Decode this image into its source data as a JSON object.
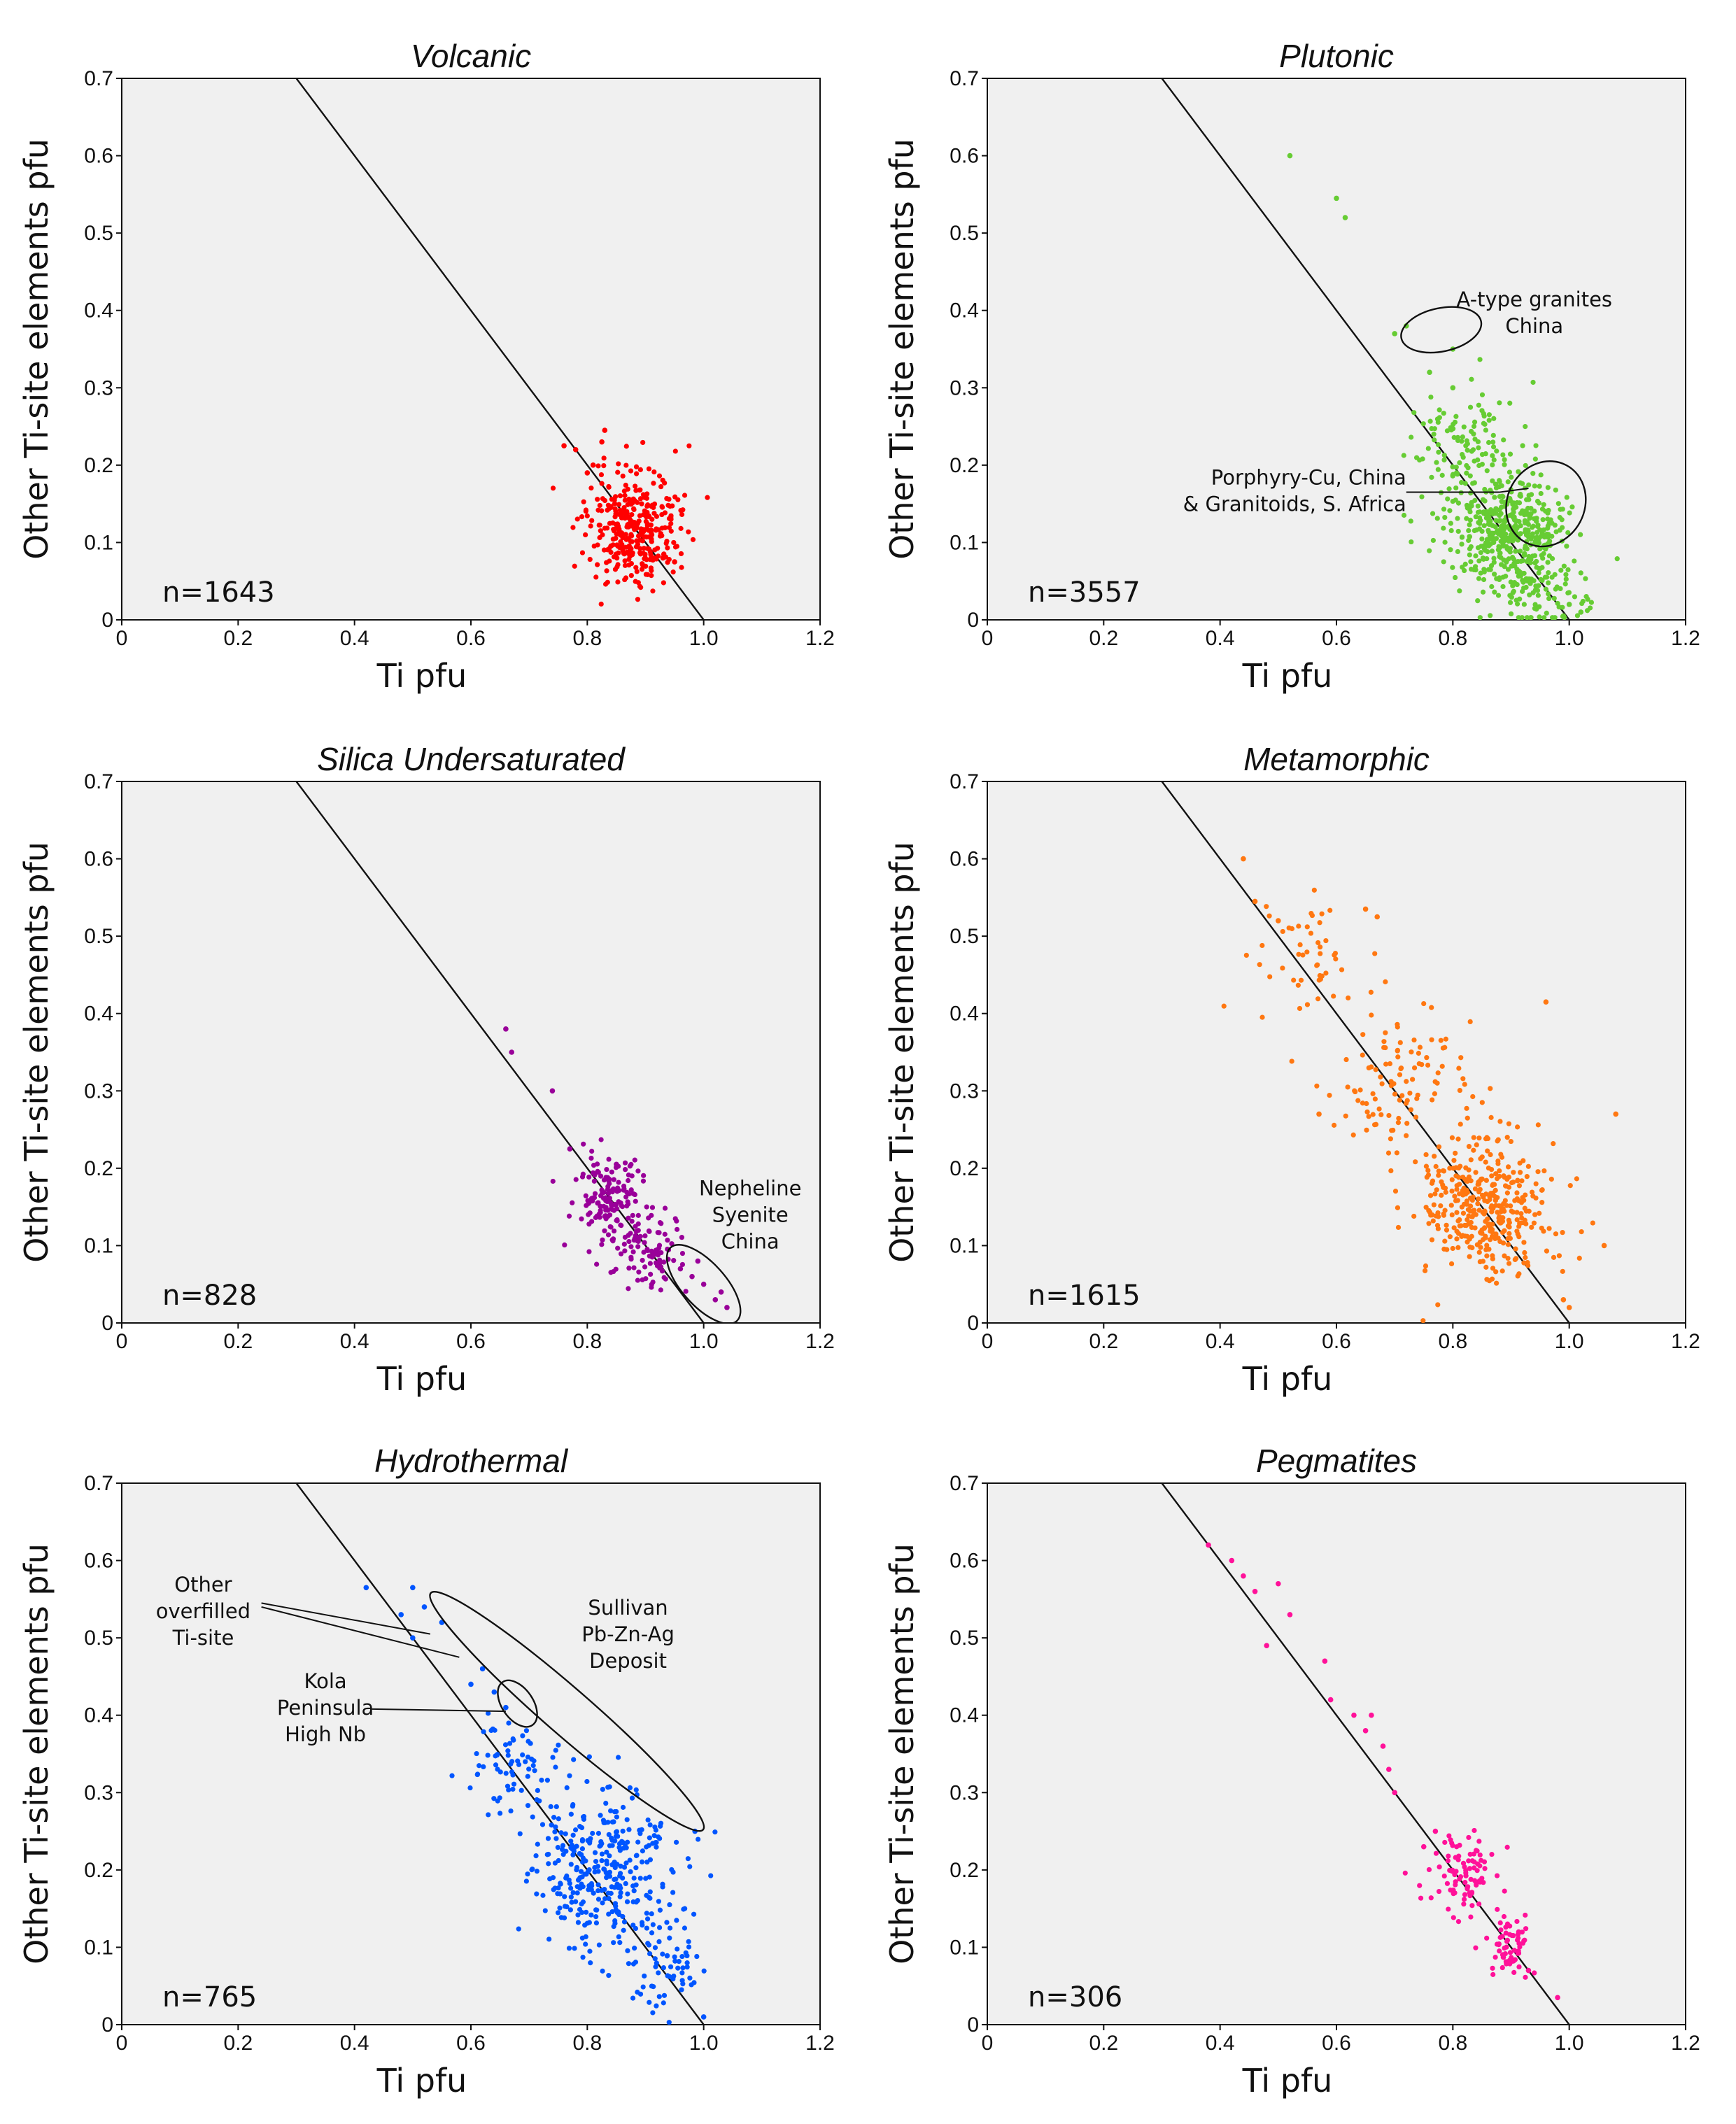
{
  "chart_data": [
    {
      "type": "scatter",
      "title": "Volcanic",
      "xlabel": "Ti  pfu",
      "ylabel": "Other Ti-site elements  pfu",
      "xlim": [
        0,
        1.2
      ],
      "ylim": [
        0,
        0.7
      ],
      "xticks": [
        "0",
        "0.2",
        "0.4",
        "0.6",
        "0.8",
        "1.0",
        "1.2"
      ],
      "yticks": [
        "0",
        "0.1",
        "0.2",
        "0.3",
        "0.4",
        "0.5",
        "0.6",
        "0.7"
      ],
      "n_label": "n=1643",
      "color": "#ff0000",
      "reference_line": [
        [
          0.3,
          0.7
        ],
        [
          1.0,
          0.0
        ]
      ],
      "series": [
        {
          "clusters": [
            {
              "center": [
                0.88,
                0.12
              ],
              "spread": [
                0.04,
                0.035
              ],
              "count": 340,
              "seed": 11
            }
          ],
          "points": [
            [
              0.76,
              0.225
            ],
            [
              0.78,
              0.22
            ],
            [
              0.81,
              0.2
            ],
            [
              0.825,
              0.23
            ],
            [
              0.83,
              0.245
            ],
            [
              0.8,
              0.19
            ],
            [
              0.93,
              0.08
            ],
            [
              0.95,
              0.075
            ]
          ]
        }
      ],
      "annotations": [],
      "outlines": []
    },
    {
      "type": "scatter",
      "title": "Plutonic",
      "xlabel": "Ti  pfu",
      "ylabel": "Other Ti-site elements  pfu",
      "xlim": [
        0,
        1.2
      ],
      "ylim": [
        0,
        0.7
      ],
      "xticks": [
        "0",
        "0.2",
        "0.4",
        "0.6",
        "0.8",
        "1.0",
        "1.2"
      ],
      "yticks": [
        "0",
        "0.1",
        "0.2",
        "0.3",
        "0.4",
        "0.5",
        "0.6",
        "0.7"
      ],
      "n_label": "n=3557",
      "color": "#66cc33",
      "reference_line": [
        [
          0.3,
          0.7
        ],
        [
          1.0,
          0.0
        ]
      ],
      "series": [
        {
          "clusters": [
            {
              "center": [
                0.9,
                0.11
              ],
              "spread": [
                0.05,
                0.035
              ],
              "count": 420,
              "seed": 21
            },
            {
              "center": [
                0.82,
                0.21
              ],
              "spread": [
                0.05,
                0.045
              ],
              "count": 140,
              "seed": 22
            },
            {
              "center": [
                0.95,
                0.04
              ],
              "spread": [
                0.04,
                0.03
              ],
              "count": 90,
              "seed": 23
            }
          ],
          "points": [
            [
              0.52,
              0.6
            ],
            [
              0.6,
              0.545
            ],
            [
              0.615,
              0.52
            ],
            [
              0.7,
              0.37
            ],
            [
              0.72,
              0.38
            ],
            [
              0.8,
              0.35
            ],
            [
              0.76,
              0.32
            ],
            [
              0.8,
              0.3
            ],
            [
              1.02,
              0.01
            ],
            [
              1.0,
              0.02
            ],
            [
              0.99,
              0.005
            ]
          ]
        }
      ],
      "annotations": [
        {
          "lines": [
            "A-type granites",
            "China"
          ],
          "x": 0.94,
          "y": 0.405,
          "anchor": "middle"
        },
        {
          "lines": [
            "Porphyry-Cu, China",
            "& Granitoids, S. Africa"
          ],
          "x": 0.72,
          "y": 0.175,
          "anchor": "end"
        }
      ],
      "outlines": [
        {
          "center": [
            0.78,
            0.375
          ],
          "rx": 0.07,
          "ry": 0.028,
          "angle": -12
        },
        {
          "center": [
            0.96,
            0.15
          ],
          "rx": 0.075,
          "ry": 0.05,
          "angle": -62
        }
      ]
    },
    {
      "type": "scatter",
      "title": "Silica Undersaturated",
      "xlabel": "Ti  pfu",
      "ylabel": "Other Ti-site elements  pfu",
      "xlim": [
        0,
        1.2
      ],
      "ylim": [
        0,
        0.7
      ],
      "xticks": [
        "0",
        "0.2",
        "0.4",
        "0.6",
        "0.8",
        "1.0",
        "1.2"
      ],
      "yticks": [
        "0",
        "0.1",
        "0.2",
        "0.3",
        "0.4",
        "0.5",
        "0.6",
        "0.7"
      ],
      "n_label": "n=828",
      "color": "#990099",
      "reference_line": [
        [
          0.3,
          0.7
        ],
        [
          1.0,
          0.0
        ]
      ],
      "series": [
        {
          "clusters": [
            {
              "center": [
                0.84,
                0.16
              ],
              "spread": [
                0.03,
                0.03
              ],
              "count": 150,
              "seed": 31
            },
            {
              "center": [
                0.91,
                0.09
              ],
              "spread": [
                0.03,
                0.025
              ],
              "count": 90,
              "seed": 32
            }
          ],
          "points": [
            [
              0.66,
              0.38
            ],
            [
              0.67,
              0.35
            ],
            [
              0.74,
              0.3
            ],
            [
              0.77,
              0.225
            ],
            [
              0.85,
              0.205
            ],
            [
              0.96,
              0.07
            ],
            [
              0.98,
              0.06
            ],
            [
              1.0,
              0.05
            ],
            [
              1.02,
              0.03
            ],
            [
              1.04,
              0.02
            ],
            [
              1.03,
              0.04
            ],
            [
              0.99,
              0.08
            ]
          ]
        }
      ],
      "annotations": [
        {
          "lines": [
            "Nepheline",
            "Syenite",
            "China"
          ],
          "x": 1.08,
          "y": 0.165,
          "anchor": "middle"
        }
      ],
      "outlines": [
        {
          "center": [
            1.0,
            0.05
          ],
          "rx": 0.085,
          "ry": 0.028,
          "angle": 48
        }
      ]
    },
    {
      "type": "scatter",
      "title": "Metamorphic",
      "xlabel": "Ti  pfu",
      "ylabel": "Other Ti-site elements  pfu",
      "xlim": [
        0,
        1.2
      ],
      "ylim": [
        0,
        0.7
      ],
      "xticks": [
        "0",
        "0.2",
        "0.4",
        "0.6",
        "0.8",
        "1.0",
        "1.2"
      ],
      "yticks": [
        "0",
        "0.1",
        "0.2",
        "0.3",
        "0.4",
        "0.5",
        "0.6",
        "0.7"
      ],
      "n_label": "n=1615",
      "color": "#ff7711",
      "reference_line": [
        [
          0.3,
          0.7
        ],
        [
          1.0,
          0.0
        ]
      ],
      "series": [
        {
          "clusters": [
            {
              "center": [
                0.86,
                0.15
              ],
              "spread": [
                0.055,
                0.045
              ],
              "count": 380,
              "seed": 41
            },
            {
              "center": [
                0.72,
                0.31
              ],
              "spread": [
                0.06,
                0.05
              ],
              "count": 110,
              "seed": 42
            },
            {
              "center": [
                0.55,
                0.47
              ],
              "spread": [
                0.05,
                0.04
              ],
              "count": 50,
              "seed": 43
            }
          ],
          "points": [
            [
              0.44,
              0.6
            ],
            [
              0.46,
              0.545
            ],
            [
              0.5,
              0.52
            ],
            [
              0.65,
              0.535
            ],
            [
              0.67,
              0.525
            ],
            [
              0.96,
              0.415
            ],
            [
              1.08,
              0.27
            ],
            [
              1.06,
              0.1
            ],
            [
              0.57,
              0.27
            ],
            [
              0.99,
              0.03
            ],
            [
              1.0,
              0.02
            ]
          ]
        }
      ],
      "annotations": [],
      "outlines": []
    },
    {
      "type": "scatter",
      "title": "Hydrothermal",
      "xlabel": "Ti  pfu",
      "ylabel": "Other Ti-site elements  pfu",
      "xlim": [
        0,
        1.2
      ],
      "ylim": [
        0,
        0.7
      ],
      "xticks": [
        "0",
        "0.2",
        "0.4",
        "0.6",
        "0.8",
        "1.0",
        "1.2"
      ],
      "yticks": [
        "0",
        "0.1",
        "0.2",
        "0.3",
        "0.4",
        "0.5",
        "0.6",
        "0.7"
      ],
      "n_label": "n=765",
      "color": "#0055ff",
      "reference_line": [
        [
          0.3,
          0.7
        ],
        [
          1.0,
          0.0
        ]
      ],
      "series": [
        {
          "clusters": [
            {
              "center": [
                0.82,
                0.2
              ],
              "spread": [
                0.06,
                0.05
              ],
              "count": 330,
              "seed": 51
            },
            {
              "center": [
                0.68,
                0.34
              ],
              "spread": [
                0.04,
                0.035
              ],
              "count": 70,
              "seed": 52
            },
            {
              "center": [
                0.93,
                0.08
              ],
              "spread": [
                0.035,
                0.03
              ],
              "count": 70,
              "seed": 53
            }
          ],
          "points": [
            [
              0.42,
              0.565
            ],
            [
              0.48,
              0.53
            ],
            [
              0.5,
              0.565
            ],
            [
              0.52,
              0.54
            ],
            [
              0.5,
              0.5
            ],
            [
              0.55,
              0.52
            ],
            [
              0.6,
              0.44
            ],
            [
              0.62,
              0.46
            ],
            [
              0.64,
              0.43
            ],
            [
              0.66,
              0.41
            ],
            [
              0.985,
              0.25
            ],
            [
              1.0,
              0.01
            ]
          ]
        }
      ],
      "annotations": [
        {
          "lines": [
            "Other",
            "overfilled",
            "Ti-site"
          ],
          "x": 0.14,
          "y": 0.56,
          "anchor": "middle"
        },
        {
          "lines": [
            "Kola",
            "Peninsula",
            "High Nb"
          ],
          "x": 0.35,
          "y": 0.435,
          "anchor": "middle"
        },
        {
          "lines": [
            "Sullivan",
            "Pb-Zn-Ag",
            "Deposit"
          ],
          "x": 0.87,
          "y": 0.53,
          "anchor": "middle"
        }
      ],
      "outlines": [
        {
          "center": [
            0.765,
            0.405
          ],
          "rx": 0.31,
          "ry": 0.03,
          "angle": 41
        },
        {
          "center": [
            0.68,
            0.415
          ],
          "rx": 0.045,
          "ry": 0.02,
          "angle": 55
        }
      ]
    },
    {
      "type": "scatter",
      "title": "Pegmatites",
      "xlabel": "Ti  pfu",
      "ylabel": "Other Ti-site elements  pfu",
      "xlim": [
        0,
        1.2
      ],
      "ylim": [
        0,
        0.7
      ],
      "xticks": [
        "0",
        "0.2",
        "0.4",
        "0.6",
        "0.8",
        "1.0",
        "1.2"
      ],
      "yticks": [
        "0",
        "0.1",
        "0.2",
        "0.3",
        "0.4",
        "0.5",
        "0.6",
        "0.7"
      ],
      "n_label": "n=306",
      "color": "#ff1199",
      "reference_line": [
        [
          0.3,
          0.7
        ],
        [
          1.0,
          0.0
        ]
      ],
      "series": [
        {
          "clusters": [
            {
              "center": [
                0.82,
                0.19
              ],
              "spread": [
                0.03,
                0.03
              ],
              "count": 90,
              "seed": 61
            },
            {
              "center": [
                0.9,
                0.1
              ],
              "spread": [
                0.02,
                0.02
              ],
              "count": 60,
              "seed": 62
            }
          ],
          "points": [
            [
              0.38,
              0.62
            ],
            [
              0.42,
              0.6
            ],
            [
              0.44,
              0.58
            ],
            [
              0.46,
              0.56
            ],
            [
              0.5,
              0.57
            ],
            [
              0.52,
              0.53
            ],
            [
              0.48,
              0.49
            ],
            [
              0.58,
              0.47
            ],
            [
              0.59,
              0.42
            ],
            [
              0.63,
              0.4
            ],
            [
              0.65,
              0.38
            ],
            [
              0.66,
              0.4
            ],
            [
              0.68,
              0.36
            ],
            [
              0.69,
              0.33
            ],
            [
              0.7,
              0.3
            ],
            [
              0.77,
              0.25
            ],
            [
              0.75,
              0.23
            ],
            [
              0.98,
              0.035
            ],
            [
              0.93,
              0.07
            ]
          ]
        }
      ],
      "annotations": [],
      "outlines": []
    }
  ]
}
